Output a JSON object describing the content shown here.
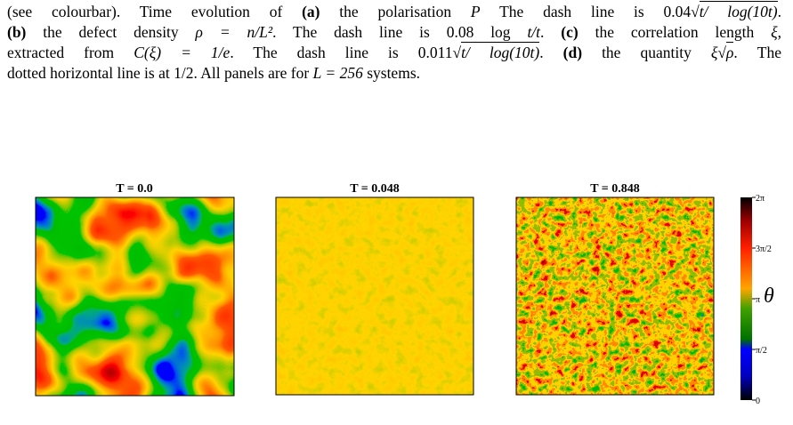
{
  "caption": {
    "lines": [
      [
        "(see colourbar). Time evolution of ",
        "(a)",
        " the polarisation ",
        "P",
        " The dash line is 0.04√",
        "t/ log(10t)",
        "."
      ],
      [
        "(b)",
        " the defect density ",
        "ρ = n/L²",
        ". The dash line is 0.08 log ",
        "t/t",
        ". ",
        "(c)",
        " the correlation length ",
        "ξ",
        ","
      ],
      [
        "extracted from ",
        "C(ξ) = 1/e",
        ". The dash line is 0.011√",
        "t/ log(10t)",
        ". ",
        "(d)",
        " the quantity ",
        "ξ√",
        "ρ",
        ". The"
      ],
      [
        "dotted horizontal line is at 1/2. All panels are for ",
        "L = 256",
        " systems."
      ]
    ]
  },
  "panels": [
    {
      "title": "T = 0.0"
    },
    {
      "title": "T = 0.048"
    },
    {
      "title": "T = 0.848"
    }
  ],
  "colorbar": {
    "label": "θ",
    "ticks": [
      "0",
      "π/2",
      "π",
      "3π/2",
      "2π"
    ]
  }
}
